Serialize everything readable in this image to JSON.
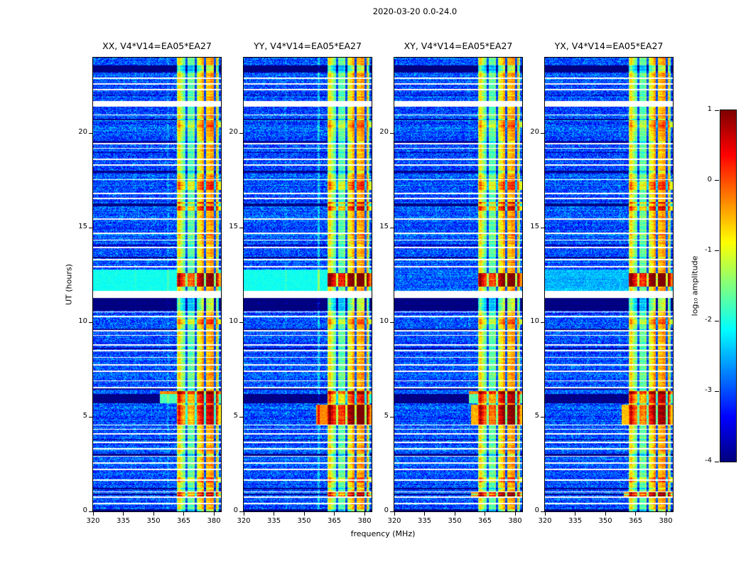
{
  "figure": {
    "title": "2020-03-20 0.0-24.0",
    "xlabel": "frequency (MHz)",
    "ylabel": "UT (hours)",
    "colorbar_label": "log₁₀ amplitude"
  },
  "chart_data": {
    "type": "heatmap",
    "title": "2020-03-20 0.0-24.0",
    "xlabel": "frequency (MHz)",
    "ylabel": "UT (hours)",
    "x_range_mhz": [
      320,
      383.5
    ],
    "x_ticks": [
      320,
      335,
      350,
      365,
      380
    ],
    "y_range_hours": [
      0,
      24
    ],
    "y_ticks": [
      0,
      5,
      10,
      15,
      20
    ],
    "colorbar": {
      "label": "log₁₀ amplitude",
      "min": -4,
      "max": 1,
      "ticks": [
        1,
        0,
        -1,
        -2,
        -3,
        -4
      ],
      "colormap": "jet"
    },
    "panels": [
      {
        "pol": "XX",
        "title": "XX, V4*V14=EA05*EA27"
      },
      {
        "pol": "YY",
        "title": "YY, V4*V14=EA05*EA27"
      },
      {
        "pol": "XY",
        "title": "XY, V4*V14=EA05*EA27"
      },
      {
        "pol": "YX",
        "title": "YX, V4*V14=EA05*EA27"
      }
    ],
    "features": {
      "background_amp_range": [
        -3.9,
        -2.2
      ],
      "rfi_band": {
        "freq": [
          361.5,
          382.5
        ],
        "amp": [
          -1.7,
          -0.35
        ],
        "notches": [
          366.4,
          371.0,
          375.6,
          380.4
        ]
      },
      "cyan_band": {
        "t": [
          11.66,
          12.78
        ],
        "amp": -2.05,
        "panel_strength": [
          1.0,
          1.0,
          0.12,
          0.55
        ]
      },
      "white_gaps": [
        [
          0.38,
          0.06
        ],
        [
          0.72,
          0.06
        ],
        [
          1.02,
          0.05
        ],
        [
          1.62,
          0.06
        ],
        [
          2.18,
          0.06
        ],
        [
          2.52,
          0.06
        ],
        [
          2.88,
          0.05
        ],
        [
          3.28,
          0.06
        ],
        [
          3.62,
          0.06
        ],
        [
          4.08,
          0.06
        ],
        [
          4.32,
          0.06
        ],
        [
          4.55,
          0.05
        ],
        [
          6.52,
          0.06
        ],
        [
          6.88,
          0.06
        ],
        [
          7.38,
          0.06
        ],
        [
          7.72,
          0.06
        ],
        [
          8.12,
          0.06
        ],
        [
          8.48,
          0.05
        ],
        [
          8.78,
          0.06
        ],
        [
          9.28,
          0.06
        ],
        [
          9.52,
          0.06
        ],
        [
          10.28,
          0.06
        ],
        [
          10.52,
          0.06
        ],
        [
          11.28,
          0.38
        ],
        [
          12.92,
          0.06
        ],
        [
          13.28,
          0.06
        ],
        [
          13.92,
          0.06
        ],
        [
          14.32,
          0.06
        ],
        [
          14.68,
          0.06
        ],
        [
          15.42,
          0.06
        ],
        [
          16.52,
          0.06
        ],
        [
          16.78,
          0.06
        ],
        [
          17.52,
          0.06
        ],
        [
          18.28,
          0.06
        ],
        [
          18.58,
          0.06
        ],
        [
          19.18,
          0.06
        ],
        [
          19.42,
          0.06
        ],
        [
          20.95,
          0.05
        ],
        [
          21.42,
          0.3
        ],
        [
          22.28,
          0.06
        ],
        [
          22.58,
          0.06
        ],
        [
          22.88,
          0.06
        ]
      ],
      "dark_rows": [
        [
          0.0,
          0.12,
          1.0
        ],
        [
          0.85,
          0.1,
          0.7
        ],
        [
          1.15,
          0.1,
          0.8
        ],
        [
          2.95,
          0.08,
          0.8
        ],
        [
          3.75,
          0.06,
          0.6
        ],
        [
          5.7,
          0.5,
          0.8
        ],
        [
          6.42,
          0.08,
          0.7
        ],
        [
          8.58,
          0.08,
          0.7
        ],
        [
          9.6,
          0.08,
          0.6
        ],
        [
          10.62,
          0.66,
          0.9
        ],
        [
          13.38,
          0.1,
          0.8
        ],
        [
          14.05,
          0.06,
          0.6
        ],
        [
          16.15,
          0.12,
          0.8
        ],
        [
          17.92,
          0.1,
          0.85
        ],
        [
          18.95,
          0.06,
          0.5
        ],
        [
          19.5,
          0.08,
          0.6
        ],
        [
          20.7,
          0.08,
          0.6
        ],
        [
          22.0,
          0.06,
          0.5
        ],
        [
          23.2,
          0.38,
          0.9
        ]
      ],
      "red_events": [
        {
          "t": [
            0.72,
            1.02
          ],
          "boost": 1.5,
          "panels": [
            0.9,
            1.0,
            1.3,
            1.25
          ],
          "f_min": [
            361.5,
            361.5,
            358.0,
            359.0
          ]
        },
        {
          "t": [
            1.55,
            1.8
          ],
          "boost": 0.9,
          "panels": [
            0.8,
            0.8,
            0.9,
            0.9
          ],
          "f_min": [
            361.5,
            361.5,
            361.5,
            361.5
          ]
        },
        {
          "t": [
            4.55,
            5.65
          ],
          "boost": 1.6,
          "panels": [
            0.75,
            1.25,
            1.05,
            0.95
          ],
          "f_min": [
            361.5,
            356.0,
            358.0,
            358.0
          ]
        },
        {
          "t": [
            5.7,
            6.35
          ],
          "boost": 1.7,
          "panels": [
            1.15,
            0.95,
            1.2,
            1.15
          ],
          "f_min": [
            353.0,
            361.5,
            357.0,
            361.5
          ]
        },
        {
          "t": [
            9.9,
            10.15
          ],
          "boost": 0.8,
          "panels": [
            0.9,
            0.7,
            0.7,
            0.7
          ],
          "f_min": [
            361.5,
            361.5,
            361.5,
            361.5
          ]
        },
        {
          "t": [
            11.9,
            12.62
          ],
          "boost": 1.8,
          "panels": [
            1.0,
            1.25,
            1.1,
            1.2
          ],
          "f_min": [
            361.5,
            361.5,
            361.5,
            361.5
          ]
        },
        {
          "t": [
            15.9,
            16.35
          ],
          "boost": 1.1,
          "panels": [
            0.9,
            1.0,
            1.0,
            0.9
          ],
          "f_min": [
            361.5,
            361.5,
            361.5,
            361.5
          ]
        },
        {
          "t": [
            17.0,
            17.45
          ],
          "boost": 0.8,
          "panels": [
            1.0,
            0.9,
            0.9,
            0.9
          ],
          "f_min": [
            361.5,
            361.5,
            361.5,
            361.5
          ]
        },
        {
          "t": [
            20.3,
            20.6
          ],
          "boost": 0.7,
          "panels": [
            0.8,
            0.8,
            0.8,
            0.8
          ],
          "f_min": [
            361.5,
            361.5,
            361.5,
            361.5
          ]
        }
      ],
      "faint_vlines": [
        {
          "freq": 357.2,
          "strength": [
            0.3,
            0.75,
            0.15,
            0.15
          ]
        },
        {
          "freq": 341.0,
          "strength": [
            0.12,
            0.2,
            0.08,
            0.08
          ]
        }
      ]
    }
  }
}
